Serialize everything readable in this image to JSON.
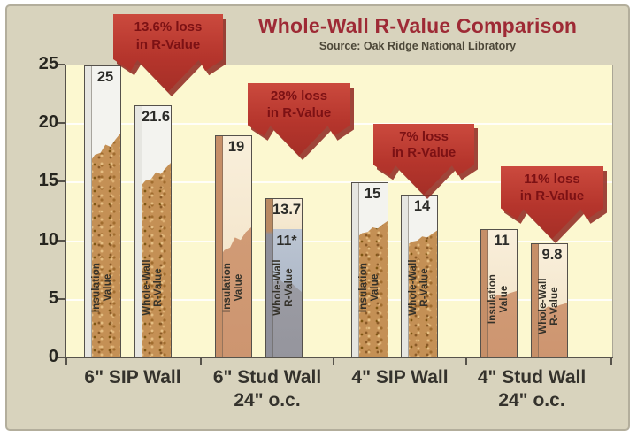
{
  "chart_data": {
    "type": "bar",
    "title": "Whole-Wall R-Value Comparison",
    "subtitle": "Source: Oak Ridge National Libratory",
    "ylim": [
      0,
      25
    ],
    "yticks": [
      0,
      5,
      10,
      15,
      20,
      25
    ],
    "grid": "horizontal",
    "legend": "labels-inside-bars",
    "series_names": [
      "Insulation Value",
      "Whole-Wall R-Value"
    ],
    "groups": [
      {
        "category_line1": "6\" SIP Wall",
        "category_line2": "",
        "callout_line1": "13.6% loss",
        "callout_line2": "in R-Value",
        "bars": [
          {
            "series": "Insulation Value",
            "value": 25,
            "label": "25"
          },
          {
            "series": "Whole-Wall R-Value",
            "value": 21.6,
            "label": "21.6"
          }
        ]
      },
      {
        "category_line1": "6\" Stud Wall",
        "category_line2": "24\" o.c.",
        "callout_line1": "28% loss",
        "callout_line2": "in R-Value",
        "bars": [
          {
            "series": "Insulation Value",
            "value": 19,
            "label": "19"
          },
          {
            "series": "Whole-Wall R-Value",
            "value": 13.7,
            "label": "13.7",
            "secondary_label": "11*"
          }
        ]
      },
      {
        "category_line1": "4\" SIP Wall",
        "category_line2": "",
        "callout_line1": "7% loss",
        "callout_line2": "in R-Value",
        "bars": [
          {
            "series": "Insulation Value",
            "value": 15,
            "label": "15"
          },
          {
            "series": "Whole-Wall R-Value",
            "value": 14,
            "label": "14"
          }
        ]
      },
      {
        "category_line1": "4\" Stud Wall",
        "category_line2": "24\" o.c.",
        "callout_line1": "11% loss",
        "callout_line2": "in R-Value",
        "bars": [
          {
            "series": "Insulation Value",
            "value": 11,
            "label": "11"
          },
          {
            "series": "Whole-Wall R-Value",
            "value": 9.8,
            "label": "9.8"
          }
        ]
      }
    ],
    "colors": {
      "title_text": "#9e2a35",
      "subtitle_text": "#4c4738",
      "outer_background": "#d8d3bd",
      "plot_background": "#fcf8d0",
      "callout_fill": "#bf3a30",
      "callout_text": "#7c1114",
      "osb_texture": "#c49055",
      "cream_top": "#f7ebd3",
      "salmon_bottom": "#d09a73",
      "bluegray_zone": "#b7c1cf",
      "gray_bottom": "#9a9aa2",
      "white_top": "#f3f3ef"
    }
  }
}
